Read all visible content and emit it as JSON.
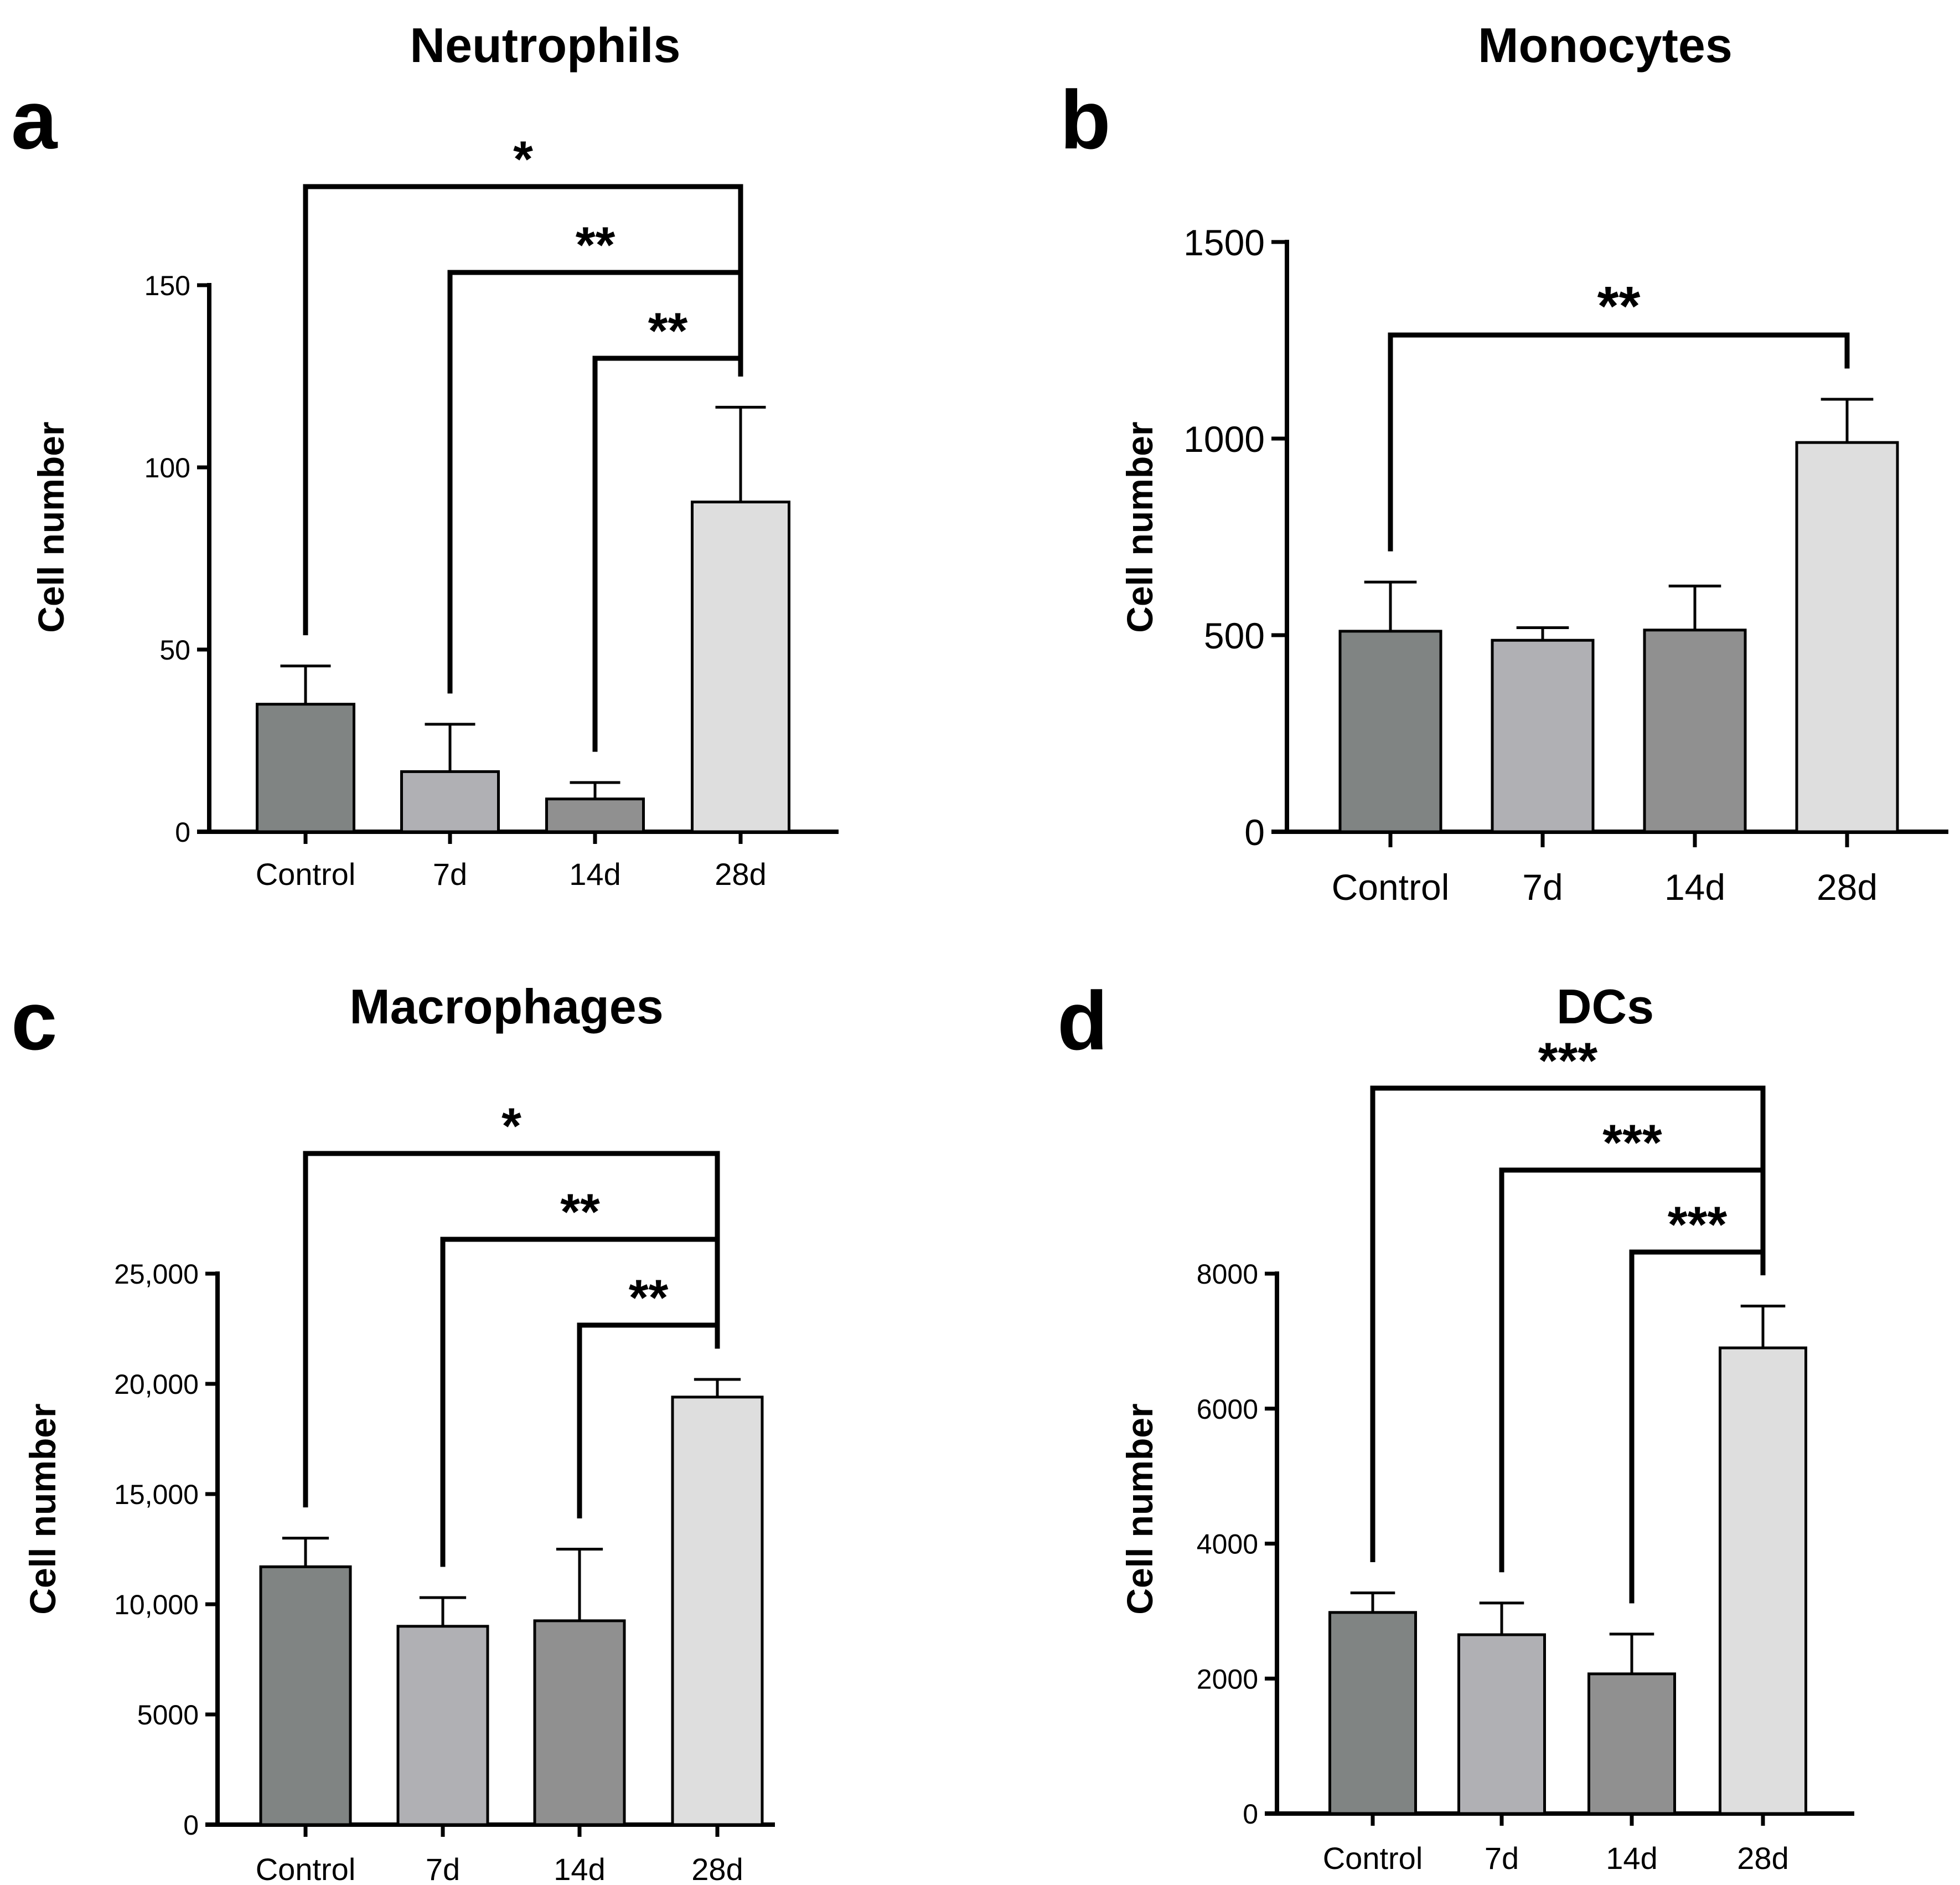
{
  "panels": [
    {
      "letter": "a",
      "title": "Neutrophils"
    },
    {
      "letter": "b",
      "title": "Monocytes"
    },
    {
      "letter": "c",
      "title": "Macrophages"
    },
    {
      "letter": "d",
      "title": "DCs"
    }
  ],
  "colors": {
    "Control": "#808483",
    "7d": "#b0b0b4",
    "14d": "#909090",
    "28d": "#dedede"
  },
  "chart_data": [
    {
      "type": "bar",
      "title": "Neutrophils",
      "ylabel": "Cell number",
      "xlabel": "",
      "categories": [
        "Control",
        "7d",
        "14d",
        "28d"
      ],
      "values": [
        35,
        16.5,
        9,
        90.5
      ],
      "errors": [
        10.5,
        13,
        4.5,
        26
      ],
      "ylim": [
        0,
        150
      ],
      "yticks": [
        0,
        50,
        100,
        150
      ],
      "ytick_labels": [
        "0",
        "50",
        "100",
        "150"
      ],
      "significance": [
        {
          "from": "Control",
          "to": "28d",
          "label": "*"
        },
        {
          "from": "7d",
          "to": "28d",
          "label": "**"
        },
        {
          "from": "14d",
          "to": "28d",
          "label": "**"
        }
      ]
    },
    {
      "type": "bar",
      "title": "Monocytes",
      "ylabel": "Cell number",
      "xlabel": "",
      "categories": [
        "Control",
        "7d",
        "14d",
        "28d"
      ],
      "values": [
        510,
        487,
        513,
        990
      ],
      "errors": [
        125,
        32,
        112,
        110
      ],
      "ylim": [
        0,
        1500
      ],
      "yticks": [
        0,
        500,
        1000,
        1500
      ],
      "ytick_labels": [
        "0",
        "500",
        "1000",
        "1500"
      ],
      "significance": [
        {
          "from": "Control",
          "to": "28d",
          "label": "**"
        }
      ]
    },
    {
      "type": "bar",
      "title": "Macrophages",
      "ylabel": "Cell number",
      "xlabel": "",
      "categories": [
        "Control",
        "7d",
        "14d",
        "28d"
      ],
      "values": [
        11700,
        9000,
        9250,
        19400
      ],
      "errors": [
        1300,
        1300,
        3250,
        800
      ],
      "ylim": [
        0,
        25000
      ],
      "yticks": [
        0,
        5000,
        10000,
        15000,
        20000,
        25000
      ],
      "ytick_labels": [
        "0",
        "5000",
        "10,000",
        "15,000",
        "20,000",
        "25,000"
      ],
      "significance": [
        {
          "from": "Control",
          "to": "28d",
          "label": "*"
        },
        {
          "from": "7d",
          "to": "28d",
          "label": "**"
        },
        {
          "from": "14d",
          "to": "28d",
          "label": "**"
        }
      ]
    },
    {
      "type": "bar",
      "title": "DCs",
      "ylabel": "Cell number",
      "xlabel": "",
      "categories": [
        "Control",
        "7d",
        "14d",
        "28d"
      ],
      "values": [
        2980,
        2650,
        2070,
        6900
      ],
      "errors": [
        290,
        470,
        590,
        620
      ],
      "ylim": [
        0,
        8000
      ],
      "yticks": [
        0,
        2000,
        4000,
        6000,
        8000
      ],
      "ytick_labels": [
        "0",
        "2000",
        "4000",
        "6000",
        "8000"
      ],
      "significance": [
        {
          "from": "Control",
          "to": "28d",
          "label": "***"
        },
        {
          "from": "7d",
          "to": "28d",
          "label": "***"
        },
        {
          "from": "14d",
          "to": "28d",
          "label": "***"
        }
      ]
    }
  ]
}
